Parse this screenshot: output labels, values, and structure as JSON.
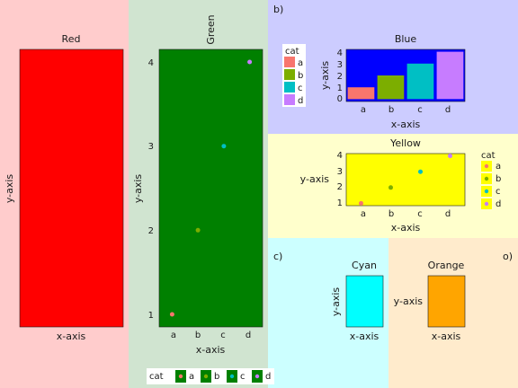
{
  "palette": {
    "a": "#f8766d",
    "b": "#7cae00",
    "c": "#00bfc4",
    "d": "#c77cff"
  },
  "chart_data": [
    {
      "id": "red",
      "type": "blank",
      "panel_bg": "#ffcccc",
      "plot_bg": "#ff0000",
      "title": "Red",
      "xlabel": "x-axis",
      "ylabel": "y-axis"
    },
    {
      "id": "green",
      "type": "scatter",
      "panel_bg": "#d0e4d0",
      "plot_bg": "#008000",
      "title": "Green",
      "title_rotated": true,
      "xlabel": "x-axis",
      "ylabel": "y-axis",
      "categories": [
        "a",
        "b",
        "c",
        "d"
      ],
      "values": [
        1,
        2,
        3,
        4
      ],
      "ylim": [
        0.85,
        4.15
      ],
      "yticks": [
        "1",
        "2",
        "3",
        "4"
      ],
      "grid": false,
      "legend": {
        "title": "cat",
        "placement": "bottom",
        "entries": [
          "a",
          "b",
          "c",
          "d"
        ]
      }
    },
    {
      "id": "blue",
      "type": "bar",
      "panel_bg": "#ccccff",
      "plot_bg": "#0000ff",
      "title": "Blue",
      "tag": "b)",
      "xlabel": "x-axis",
      "ylabel": "y-axis",
      "categories": [
        "a",
        "b",
        "c",
        "d"
      ],
      "values": [
        1,
        2,
        3,
        4
      ],
      "ylim": [
        -0.2,
        4.2
      ],
      "yticks": [
        "0",
        "1",
        "2",
        "3",
        "4"
      ],
      "grid": false,
      "legend": {
        "title": "cat",
        "placement": "left",
        "entries": [
          "a",
          "b",
          "c",
          "d"
        ]
      }
    },
    {
      "id": "yellow",
      "type": "scatter",
      "panel_bg": "#ffffcc",
      "plot_bg": "#ffff00",
      "title": "Yellow",
      "xlabel": "x-axis",
      "ylabel": "y-axis",
      "categories": [
        "a",
        "b",
        "c",
        "d"
      ],
      "values": [
        1,
        2,
        3,
        4
      ],
      "ylim": [
        0.85,
        4.15
      ],
      "yticks": [
        "1",
        "2",
        "3",
        "4"
      ],
      "grid": false,
      "legend": {
        "title": "cat",
        "placement": "right",
        "entries": [
          "a",
          "b",
          "c",
          "d"
        ]
      }
    },
    {
      "id": "cyan",
      "type": "blank",
      "panel_bg": "#ccffff",
      "plot_bg": "#00ffff",
      "title": "Cyan",
      "tag": "c)",
      "xlabel": "x-axis",
      "ylabel": "y-axis"
    },
    {
      "id": "orange",
      "type": "blank",
      "panel_bg": "#ffebcc",
      "plot_bg": "#ffa500",
      "title": "Orange",
      "tag": "o)",
      "xlabel": "x-axis",
      "ylabel": "y-axis"
    }
  ]
}
